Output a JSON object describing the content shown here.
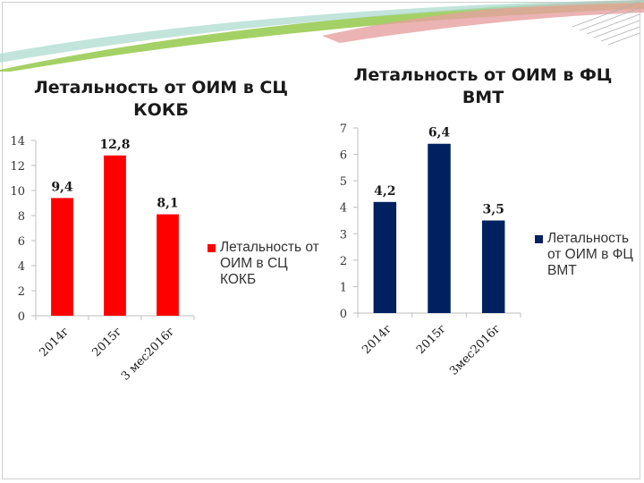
{
  "colors": {
    "left_series": "#ff0000",
    "right_series": "#002060",
    "axis": "#bfbfbf",
    "decor_green": "#8dc63f",
    "decor_pink": "#e6a0a0",
    "decor_teal": "#a8d8cc"
  },
  "chart_data": [
    {
      "type": "bar",
      "title": "Летальность от ОИМ в СЦ КОКБ",
      "categories": [
        "2014г",
        "2015г",
        "3 мес2016г"
      ],
      "series": [
        {
          "name": "Летальность от ОИМ в СЦ КОКБ",
          "values": [
            9.4,
            12.8,
            8.1
          ],
          "labels": [
            "9,4",
            "12,8",
            "8,1"
          ]
        }
      ],
      "ylim": [
        0,
        14
      ],
      "yticks": [
        0,
        2,
        4,
        6,
        8,
        10,
        12,
        14
      ],
      "grid": false,
      "legend": "right"
    },
    {
      "type": "bar",
      "title": "Летальность от ОИМ в ФЦ ВМТ",
      "categories": [
        "2014г",
        "2015г",
        "3мес2016г"
      ],
      "series": [
        {
          "name": "Летальность от ОИМ в ФЦ ВМТ",
          "values": [
            4.2,
            6.4,
            3.5
          ],
          "labels": [
            "4,2",
            "6,4",
            "3,5"
          ]
        }
      ],
      "ylim": [
        0,
        7
      ],
      "yticks": [
        0,
        1,
        2,
        3,
        4,
        5,
        6,
        7
      ],
      "grid": false,
      "legend": "right"
    }
  ]
}
